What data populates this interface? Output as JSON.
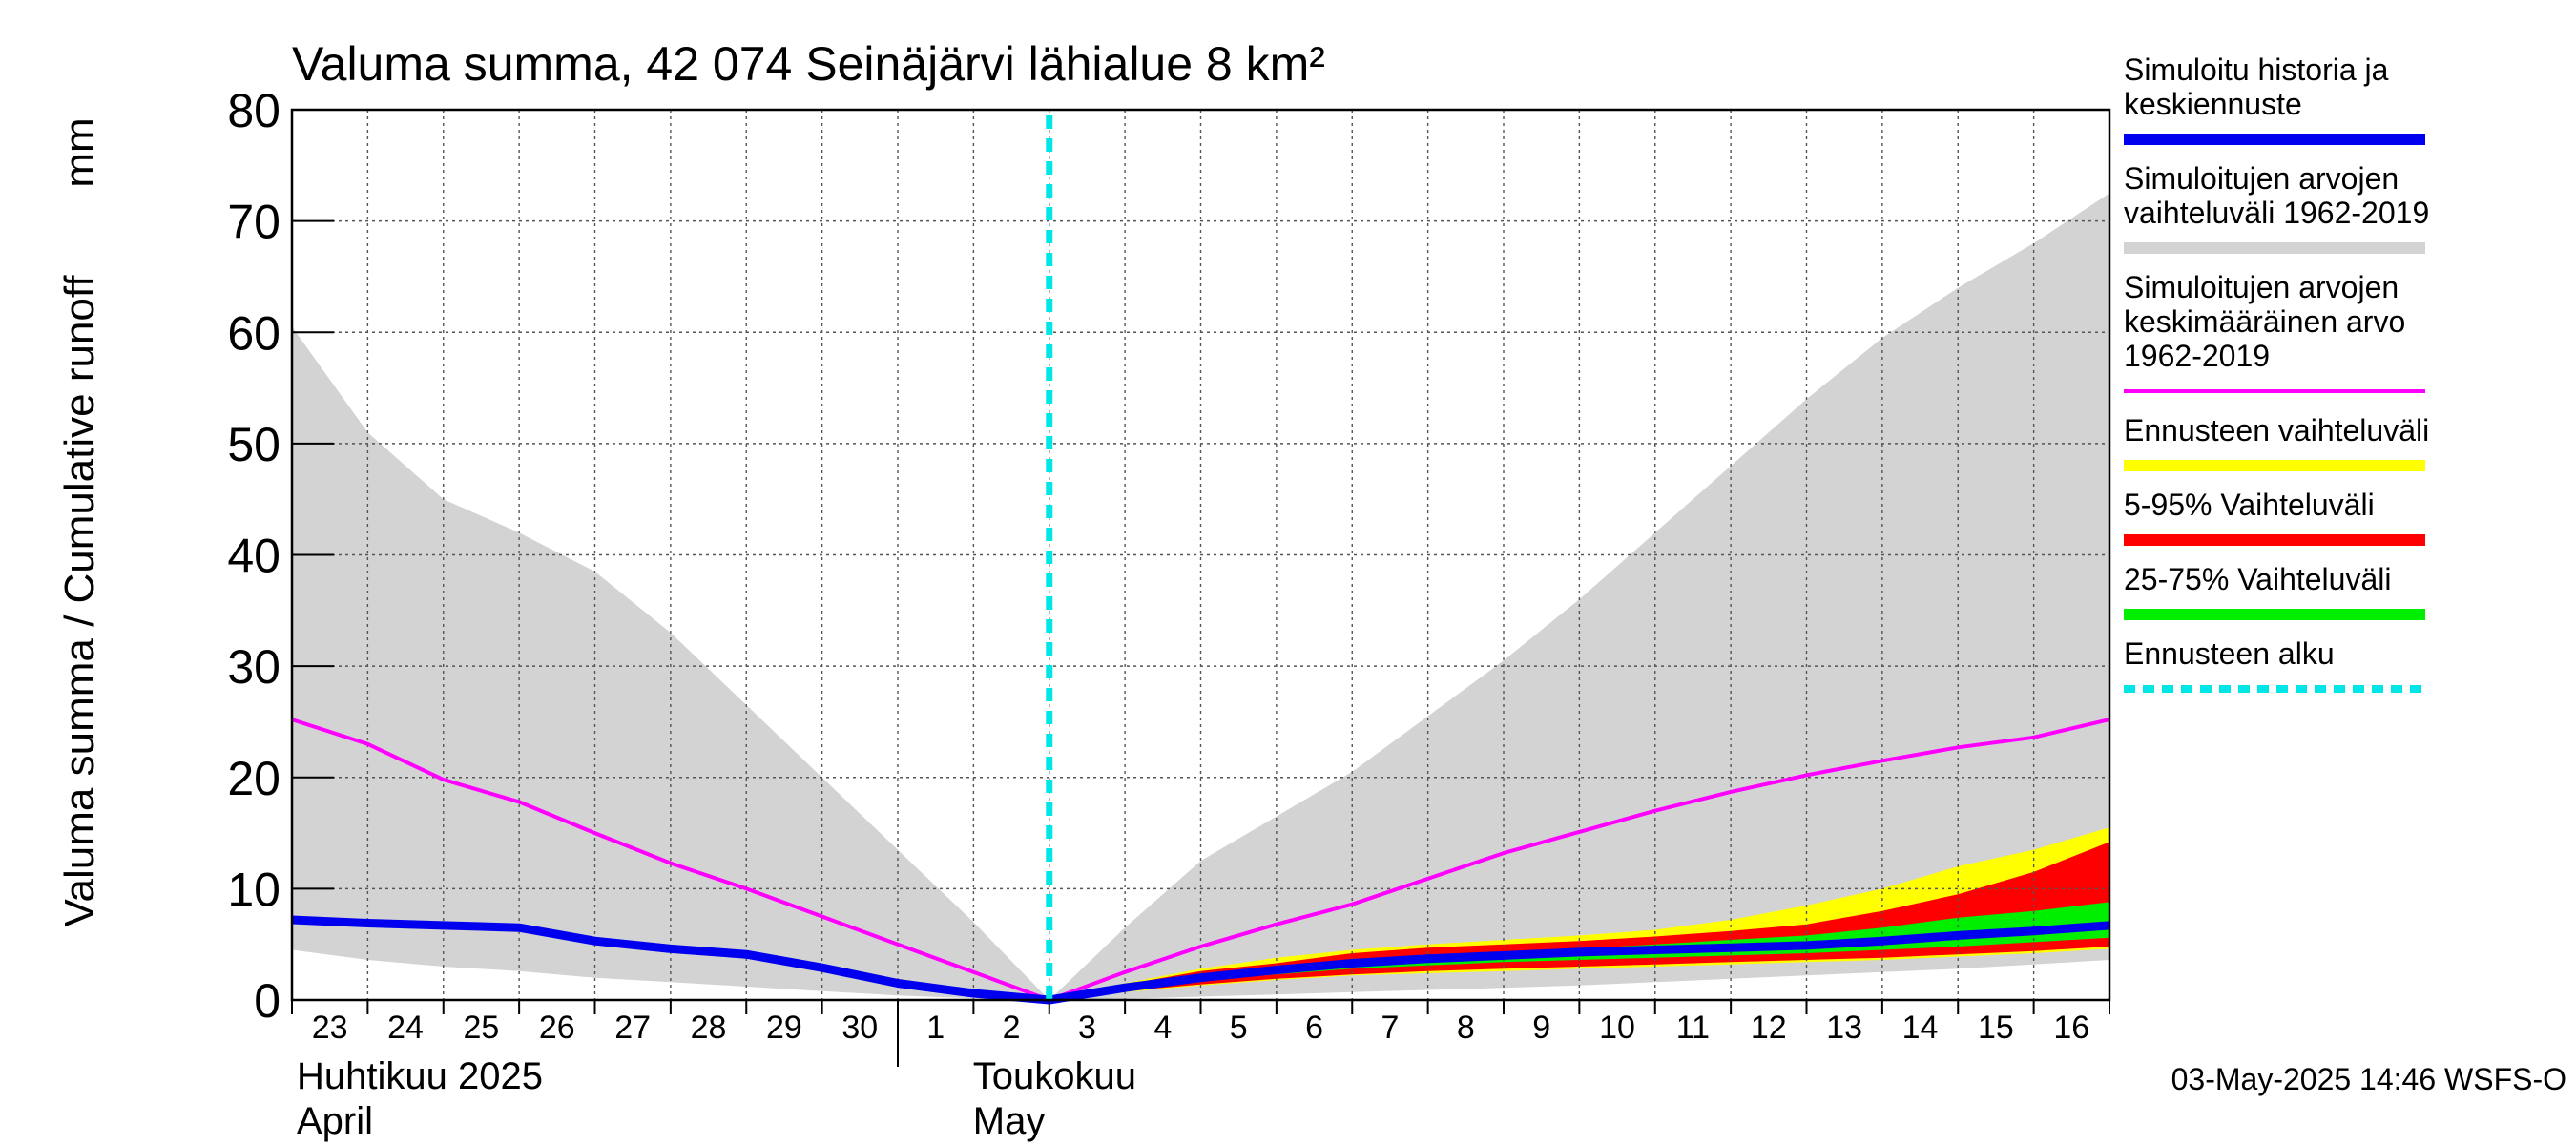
{
  "chart_data": {
    "type": "area",
    "title": "Valuma summa, 42 074 Seinäjärvi lähialue 8 km²",
    "ylabel": "Valuma summa / Cumulative runoff",
    "yunit": "mm",
    "ylim": [
      0,
      80
    ],
    "yticks": [
      0,
      10,
      20,
      30,
      40,
      50,
      60,
      70,
      80
    ],
    "grid": true,
    "legend_position": "right",
    "x_dates": [
      "2025-04-23",
      "2025-04-24",
      "2025-04-25",
      "2025-04-26",
      "2025-04-27",
      "2025-04-28",
      "2025-04-29",
      "2025-04-30",
      "2025-05-01",
      "2025-05-02",
      "2025-05-03",
      "2025-05-04",
      "2025-05-05",
      "2025-05-06",
      "2025-05-07",
      "2025-05-08",
      "2025-05-09",
      "2025-05-10",
      "2025-05-11",
      "2025-05-12",
      "2025-05-13",
      "2025-05-14",
      "2025-05-15",
      "2025-05-16",
      "2025-05-17"
    ],
    "x_tick_labels": [
      "23",
      "24",
      "25",
      "26",
      "27",
      "28",
      "29",
      "30",
      "1",
      "2",
      "3",
      "4",
      "5",
      "6",
      "7",
      "8",
      "9",
      "10",
      "11",
      "12",
      "13",
      "14",
      "15",
      "16"
    ],
    "month_labels": [
      {
        "line1": "Huhtikuu  2025",
        "line2": "April"
      },
      {
        "line1": "Toukokuu",
        "line2": "May"
      }
    ],
    "forecast_start": "2025-05-03",
    "series": [
      {
        "name": "Simuloitujen arvojen vaihteluväli 1962-2019",
        "color": "#d3d3d3",
        "lower": [
          4.5,
          3.6,
          3.0,
          2.6,
          2.0,
          1.6,
          1.2,
          0.8,
          0.4,
          0.15,
          0,
          0.1,
          0.3,
          0.5,
          0.7,
          0.9,
          1.1,
          1.3,
          1.6,
          1.9,
          2.2,
          2.5,
          2.8,
          3.2,
          3.6
        ],
        "upper": [
          60.5,
          51,
          45,
          42,
          38.5,
          33,
          26.5,
          20,
          13.5,
          7,
          0,
          6.5,
          12.5,
          16.5,
          20.5,
          25.5,
          30.5,
          36,
          42,
          48,
          54,
          59.5,
          64,
          68,
          72.5
        ]
      },
      {
        "name": "Ennusteen vaihteluväli",
        "color": "#ffff00",
        "lower": [
          null,
          null,
          null,
          null,
          null,
          null,
          null,
          null,
          null,
          null,
          0,
          0.7,
          1.3,
          1.8,
          2.2,
          2.4,
          2.6,
          2.8,
          3.0,
          3.2,
          3.4,
          3.6,
          3.9,
          4.2,
          4.6
        ],
        "upper": [
          null,
          null,
          null,
          null,
          null,
          null,
          null,
          null,
          null,
          null,
          0,
          1.5,
          2.8,
          3.8,
          4.5,
          5.0,
          5.4,
          5.8,
          6.3,
          7.2,
          8.5,
          10.0,
          12.0,
          13.5,
          15.5
        ]
      },
      {
        "name": "5-95% Vaihteluväli",
        "color": "#ff0000",
        "lower": [
          null,
          null,
          null,
          null,
          null,
          null,
          null,
          null,
          null,
          null,
          0,
          0.8,
          1.4,
          1.9,
          2.3,
          2.6,
          2.8,
          3.0,
          3.2,
          3.4,
          3.6,
          3.8,
          4.1,
          4.4,
          4.8
        ],
        "upper": [
          null,
          null,
          null,
          null,
          null,
          null,
          null,
          null,
          null,
          null,
          0,
          1.4,
          2.6,
          3.3,
          4.2,
          4.7,
          5.0,
          5.3,
          5.7,
          6.2,
          6.8,
          8.0,
          9.5,
          11.5,
          14.2
        ]
      },
      {
        "name": "25-75% Vaihteluväli",
        "color": "#00ee00",
        "lower": [
          null,
          null,
          null,
          null,
          null,
          null,
          null,
          null,
          null,
          null,
          0,
          1.0,
          1.8,
          2.3,
          2.8,
          3.1,
          3.4,
          3.6,
          3.8,
          4.0,
          4.2,
          4.5,
          4.8,
          5.2,
          5.6
        ],
        "upper": [
          null,
          null,
          null,
          null,
          null,
          null,
          null,
          null,
          null,
          null,
          0,
          1.2,
          2.1,
          2.8,
          3.4,
          3.8,
          4.2,
          4.6,
          5.0,
          5.4,
          5.8,
          6.5,
          7.4,
          8.0,
          8.8
        ]
      },
      {
        "name": "Simuloitujen arvojen keskimääräinen arvo 1962-2019",
        "color": "#ff00ff",
        "values": [
          25.2,
          23,
          19.8,
          17.8,
          15,
          12.3,
          10,
          7.5,
          5,
          2.5,
          0,
          2.5,
          4.8,
          6.8,
          8.6,
          10.9,
          13.2,
          15.1,
          17,
          18.7,
          20.2,
          21.5,
          22.7,
          23.6,
          25.2
        ]
      },
      {
        "name": "Simuloitu historia ja keskiennuste",
        "color": "#0000ee",
        "values": [
          7.2,
          6.9,
          6.7,
          6.5,
          5.3,
          4.6,
          4.1,
          2.9,
          1.5,
          0.6,
          0,
          1.1,
          2.0,
          2.7,
          3.3,
          3.7,
          4.0,
          4.3,
          4.5,
          4.7,
          4.9,
          5.3,
          5.8,
          6.2,
          6.7
        ]
      }
    ]
  },
  "legend": [
    {
      "label_lines": [
        "Simuloitu historia ja",
        "keskiennuste"
      ],
      "color": "#0000ee",
      "style": "solid"
    },
    {
      "label_lines": [
        "Simuloitujen arvojen",
        "vaihteluväli 1962-2019"
      ],
      "color": "#d3d3d3",
      "style": "solid"
    },
    {
      "label_lines": [
        "Simuloitujen arvojen",
        "keskimääräinen arvo",
        "   1962-2019"
      ],
      "color": "#ff00ff",
      "style": "thin"
    },
    {
      "label_lines": [
        "Ennusteen vaihteluväli"
      ],
      "color": "#ffff00",
      "style": "solid"
    },
    {
      "label_lines": [
        "5-95% Vaihteluväli"
      ],
      "color": "#ff0000",
      "style": "solid"
    },
    {
      "label_lines": [
        "25-75% Vaihteluväli"
      ],
      "color": "#00ee00",
      "style": "solid"
    },
    {
      "label_lines": [
        "Ennusteen alku"
      ],
      "color": "#00e5e5",
      "style": "dashed"
    }
  ],
  "footer": {
    "timestamp": "03-May-2025 14:46 WSFS-O"
  }
}
